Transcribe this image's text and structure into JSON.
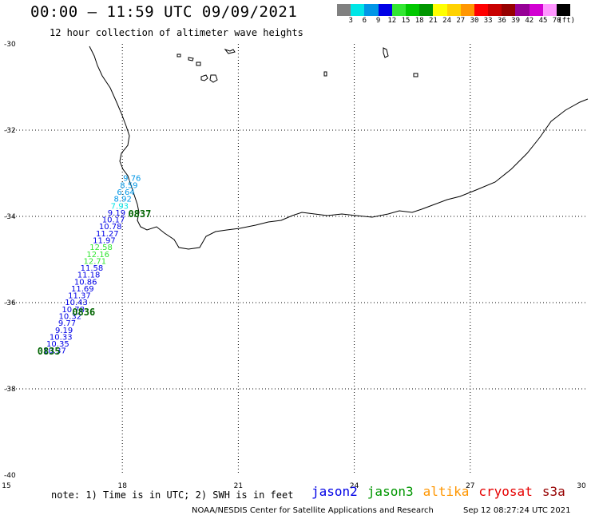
{
  "header": {
    "title": "00:00 – 11:59 UTC 09/09/2021",
    "subtitle": "12 hour collection of altimeter wave heights"
  },
  "legend": {
    "colors": [
      "#808080",
      "#00e6e6",
      "#0096e6",
      "#0000e6",
      "#32e632",
      "#00c800",
      "#009600",
      "#ffff00",
      "#ffd200",
      "#ff9600",
      "#ff0000",
      "#c80000",
      "#960000",
      "#960096",
      "#d200d2",
      "#ff96ff",
      "#000000"
    ],
    "labels": [
      "3",
      "6",
      "9",
      "12",
      "15",
      "18",
      "21",
      "24",
      "27",
      "30",
      "33",
      "36",
      "39",
      "42",
      "45",
      "70",
      "(ft)"
    ]
  },
  "axes": {
    "lat_ticks": [
      "-30",
      "-32",
      "-34",
      "-36",
      "-38",
      "-40"
    ],
    "lon_ticks": [
      "15",
      "18",
      "21",
      "24",
      "27",
      "30"
    ],
    "lon_range": [
      15,
      30
    ],
    "lat_range": [
      -40,
      -30
    ]
  },
  "swh_points": [
    {
      "lon": 18.25,
      "lat": -33.18,
      "value": "9.76",
      "color": "#0096e6"
    },
    {
      "lon": 18.17,
      "lat": -33.34,
      "value": "8.59",
      "color": "#0096e6"
    },
    {
      "lon": 18.09,
      "lat": -33.5,
      "value": "6.64",
      "color": "#0096e6"
    },
    {
      "lon": 18.01,
      "lat": -33.66,
      "value": "8.92",
      "color": "#0096e6"
    },
    {
      "lon": 17.93,
      "lat": -33.82,
      "value": "7.93",
      "color": "#00e6e6"
    },
    {
      "lon": 17.85,
      "lat": -33.98,
      "value": "9.19",
      "color": "#0000e6"
    },
    {
      "lon": 17.77,
      "lat": -34.14,
      "value": "10.17",
      "color": "#0000e6"
    },
    {
      "lon": 17.69,
      "lat": -34.3,
      "value": "10.78",
      "color": "#0000e6"
    },
    {
      "lon": 17.61,
      "lat": -34.46,
      "value": "11.27",
      "color": "#0000e6"
    },
    {
      "lon": 17.53,
      "lat": -34.62,
      "value": "11.97",
      "color": "#0000e6"
    },
    {
      "lon": 17.45,
      "lat": -34.78,
      "value": "12.58",
      "color": "#32e632"
    },
    {
      "lon": 17.37,
      "lat": -34.94,
      "value": "12.16",
      "color": "#32e632"
    },
    {
      "lon": 17.29,
      "lat": -35.1,
      "value": "12.71",
      "color": "#32e632"
    },
    {
      "lon": 17.21,
      "lat": -35.26,
      "value": "11.58",
      "color": "#0000e6"
    },
    {
      "lon": 17.13,
      "lat": -35.42,
      "value": "11.18",
      "color": "#0000e6"
    },
    {
      "lon": 17.05,
      "lat": -35.58,
      "value": "10.86",
      "color": "#0000e6"
    },
    {
      "lon": 16.97,
      "lat": -35.74,
      "value": "11.69",
      "color": "#0000e6"
    },
    {
      "lon": 16.89,
      "lat": -35.9,
      "value": "11.37",
      "color": "#0000e6"
    },
    {
      "lon": 16.81,
      "lat": -36.06,
      "value": "10.43",
      "color": "#0000e6"
    },
    {
      "lon": 16.73,
      "lat": -36.22,
      "value": "10.78",
      "color": "#0000e6"
    },
    {
      "lon": 16.65,
      "lat": -36.38,
      "value": "10.32",
      "color": "#0000e6"
    },
    {
      "lon": 16.57,
      "lat": -36.54,
      "value": "9.77",
      "color": "#0000e6"
    },
    {
      "lon": 16.49,
      "lat": -36.7,
      "value": "9.19",
      "color": "#0000e6"
    },
    {
      "lon": 16.41,
      "lat": -36.86,
      "value": "10.33",
      "color": "#0000e6"
    },
    {
      "lon": 16.33,
      "lat": -37.02,
      "value": "10.35",
      "color": "#0000e6"
    },
    {
      "lon": 16.25,
      "lat": -37.18,
      "value": "10.37",
      "color": "#0000e6"
    }
  ],
  "time_labels": [
    {
      "lon": 18.15,
      "lat": -34.02,
      "text": "0837"
    },
    {
      "lon": 16.7,
      "lat": -36.3,
      "text": "0836"
    },
    {
      "lon": 15.8,
      "lat": -37.2,
      "text": "0835"
    }
  ],
  "time_label_color": "#006400",
  "footer": {
    "note": "note: 1) Time is in UTC; 2) SWH is in feet",
    "missions": [
      {
        "name": "jason2",
        "color": "#0000e6"
      },
      {
        "name": "jason3",
        "color": "#009600"
      },
      {
        "name": "altika",
        "color": "#ff9600"
      },
      {
        "name": "cryosat",
        "color": "#e60000"
      },
      {
        "name": "s3a",
        "color": "#960000"
      }
    ],
    "credit": "NOAA/NESDIS Center for Satellite Applications and Research",
    "timestamp": "Sep 12 08:27:24 UTC 2021"
  }
}
